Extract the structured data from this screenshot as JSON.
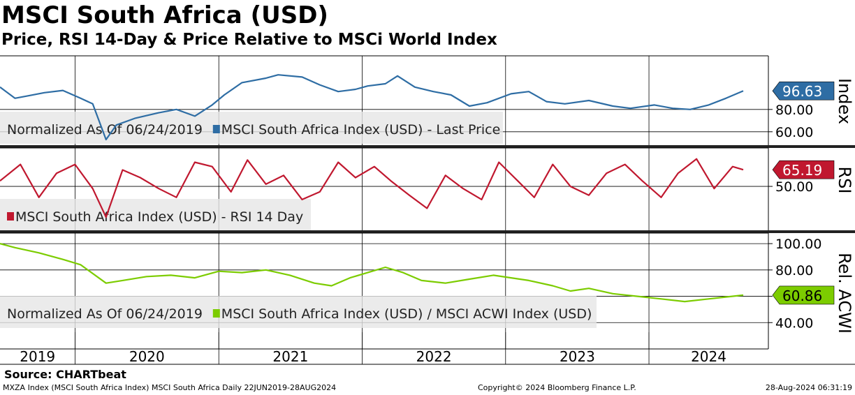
{
  "title": "MSCI South Africa (USD)",
  "subtitle": "Price, RSI 14-Day & Price Relative to MSCi World Index",
  "source": "Source: CHARTbeat",
  "footer_left": "MXZA Index (MSCI South Africa Index) MSCI South Africa  Daily 22JUN2019-28AUG2024",
  "footer_center": "Copyright© 2024 Bloomberg Finance L.P.",
  "footer_right": "28-Aug-2024 06:31:19",
  "colors": {
    "price": "#2e6da4",
    "rsi": "#c0182f",
    "relative": "#7ccc00",
    "grid": "#000000"
  },
  "chart_data": [
    {
      "type": "line",
      "panel_label": "Index",
      "legend": [
        "Normalized As Of 06/24/2019",
        "MSCI South Africa Index (USD) - Last Price"
      ],
      "ylim": [
        48,
        128
      ],
      "y_ticks": [
        60,
        80
      ],
      "y_tick_labels": [
        "60.00",
        "80.00"
      ],
      "last_value_label": "96.63",
      "series": [
        {
          "name": "MSCI South Africa Index (USD) - Last Price",
          "x": [
            "2019-06-24",
            "2019-08-01",
            "2019-09-01",
            "2019-10-15",
            "2019-12-01",
            "2020-01-15",
            "2020-02-15",
            "2020-03-20",
            "2020-04-15",
            "2020-06-01",
            "2020-08-01",
            "2020-09-15",
            "2020-11-01",
            "2020-12-15",
            "2021-01-15",
            "2021-03-01",
            "2021-05-01",
            "2021-06-01",
            "2021-08-01",
            "2021-09-15",
            "2021-11-01",
            "2021-12-15",
            "2022-01-15",
            "2022-03-01",
            "2022-04-01",
            "2022-05-15",
            "2022-07-01",
            "2022-08-15",
            "2022-10-01",
            "2022-11-15",
            "2023-01-15",
            "2023-03-01",
            "2023-04-15",
            "2023-06-01",
            "2023-08-01",
            "2023-10-01",
            "2023-11-15",
            "2024-01-15",
            "2024-03-01",
            "2024-04-15",
            "2024-06-01",
            "2024-07-15",
            "2024-08-28"
          ],
          "values": [
            100,
            90,
            92,
            95,
            97,
            90,
            85,
            53,
            66,
            72,
            77,
            80,
            74,
            84,
            93,
            104,
            108,
            111,
            109,
            102,
            96,
            98,
            101,
            103,
            110,
            100,
            96,
            93,
            83,
            86,
            94,
            96,
            87,
            85,
            88,
            83,
            81,
            84,
            81,
            80,
            84,
            90,
            96.63
          ]
        }
      ]
    },
    {
      "type": "line",
      "panel_label": "RSI",
      "legend": [
        "MSCI South Africa Index (USD) - RSI 14 Day"
      ],
      "ylim": [
        10,
        85
      ],
      "y_ticks": [
        50
      ],
      "y_tick_labels": [
        "50.00"
      ],
      "last_value_label": "65.19",
      "series": [
        {
          "name": "MSCI South Africa Index (USD) - RSI 14 Day",
          "x": [
            "2019-06-24",
            "2019-08-15",
            "2019-10-01",
            "2019-11-15",
            "2020-01-01",
            "2020-02-15",
            "2020-03-20",
            "2020-05-01",
            "2020-06-15",
            "2020-08-01",
            "2020-09-15",
            "2020-11-01",
            "2020-12-15",
            "2021-02-01",
            "2021-03-15",
            "2021-05-01",
            "2021-06-15",
            "2021-08-01",
            "2021-09-15",
            "2021-11-01",
            "2021-12-15",
            "2022-02-01",
            "2022-03-15",
            "2022-05-01",
            "2022-06-15",
            "2022-08-01",
            "2022-09-15",
            "2022-11-01",
            "2022-12-15",
            "2023-02-01",
            "2023-03-15",
            "2023-05-01",
            "2023-06-15",
            "2023-08-01",
            "2023-09-15",
            "2023-11-01",
            "2023-12-15",
            "2024-02-01",
            "2024-03-15",
            "2024-05-01",
            "2024-06-15",
            "2024-08-01",
            "2024-08-28"
          ],
          "values": [
            55,
            70,
            40,
            62,
            70,
            48,
            22,
            65,
            58,
            48,
            40,
            72,
            68,
            45,
            74,
            52,
            60,
            38,
            45,
            72,
            58,
            68,
            55,
            42,
            30,
            60,
            48,
            38,
            72,
            55,
            40,
            70,
            50,
            42,
            62,
            70,
            55,
            40,
            62,
            75,
            48,
            68,
            65.19
          ]
        }
      ]
    },
    {
      "type": "line",
      "panel_label": "Rel. ACWI",
      "legend": [
        "Normalized As Of 06/24/2019",
        "MSCI South Africa Index (USD) / MSCI ACWI Index (USD)"
      ],
      "ylim": [
        20,
        108
      ],
      "y_ticks": [
        40,
        60,
        80,
        100
      ],
      "y_tick_labels": [
        "40.00",
        "",
        "80.00",
        "100.00"
      ],
      "last_value_label": "60.86",
      "series": [
        {
          "name": "MSCI South Africa Index (USD) / MSCI ACWI Index (USD)",
          "x": [
            "2019-06-24",
            "2019-08-01",
            "2019-10-01",
            "2019-12-01",
            "2020-01-15",
            "2020-03-20",
            "2020-05-01",
            "2020-07-01",
            "2020-09-01",
            "2020-11-01",
            "2021-01-01",
            "2021-03-01",
            "2021-05-01",
            "2021-07-01",
            "2021-09-01",
            "2021-10-15",
            "2021-12-01",
            "2022-01-15",
            "2022-03-01",
            "2022-04-15",
            "2022-06-01",
            "2022-08-01",
            "2022-10-01",
            "2022-12-01",
            "2023-01-15",
            "2023-03-01",
            "2023-05-01",
            "2023-06-15",
            "2023-08-01",
            "2023-10-01",
            "2023-12-01",
            "2024-02-01",
            "2024-04-01",
            "2024-06-01",
            "2024-08-28"
          ],
          "values": [
            100,
            97,
            93,
            88,
            84,
            70,
            72,
            75,
            76,
            74,
            79,
            78,
            80,
            76,
            70,
            68,
            74,
            78,
            82,
            78,
            72,
            70,
            73,
            76,
            74,
            72,
            68,
            64,
            66,
            62,
            60,
            58,
            56,
            58,
            60.86
          ]
        }
      ]
    }
  ],
  "x_axis": {
    "categories": [
      "2019",
      "2020",
      "2021",
      "2022",
      "2023",
      "2024"
    ],
    "range": [
      "2019-06-24",
      "2024-10-31"
    ]
  }
}
